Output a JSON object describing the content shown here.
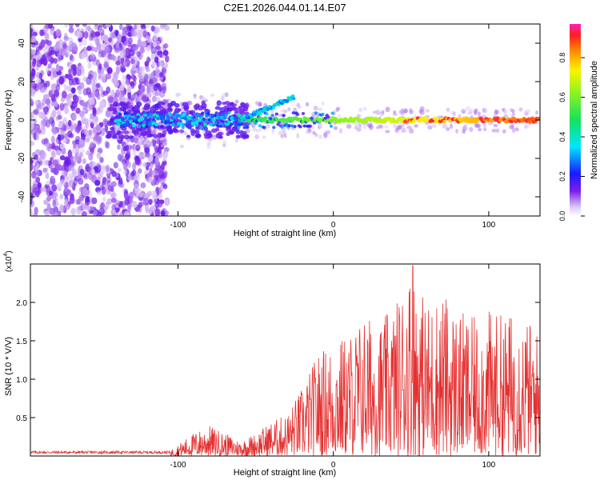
{
  "title": "C2E1.2026.044.01.14.E07",
  "chart_data": [
    {
      "type": "heatmap",
      "name": "spectrogram",
      "xlabel": "Height of straight line (km)",
      "ylabel": "Frequency (Hz)",
      "xlim": [
        -195,
        133
      ],
      "ylim": [
        -50,
        50
      ],
      "xticks": [
        -100,
        0,
        100
      ],
      "xtick_labels": [
        "-100",
        "0",
        "100"
      ],
      "yticks": [
        -40,
        -20,
        0,
        20,
        40
      ],
      "ytick_labels": [
        "-40",
        "-20",
        "0",
        "20",
        "40"
      ],
      "colorbar": {
        "label": "Normalized spectral amplitude",
        "range": [
          0,
          0.97
        ],
        "ticks": [
          0.0,
          0.2,
          0.4,
          0.6,
          0.8
        ],
        "tick_labels": [
          "0.0",
          "0.2",
          "0.4",
          "0.6",
          "0.8"
        ]
      },
      "features": {
        "noise_region_x": [
          -195,
          -107
        ],
        "signal_onset_x": -140,
        "signal_frequency": 0,
        "branch": {
          "x": [
            -60,
            -25
          ],
          "y": [
            0,
            12
          ]
        }
      }
    },
    {
      "type": "line",
      "name": "snr",
      "xlabel": "Height of straight line (km)",
      "ylabel": "SNR (10 * V/V)",
      "scale_label": "(x10",
      "scale_exponent": "4",
      "scale_suffix": ")",
      "xlim": [
        -195,
        133
      ],
      "ylim": [
        0,
        2.5
      ],
      "xticks": [
        -100,
        0,
        100
      ],
      "xtick_labels": [
        "-100",
        "0",
        "100"
      ],
      "yticks": [
        0.5,
        1.0,
        1.5,
        2.0
      ],
      "ytick_labels": [
        "0.5",
        "1.0",
        "1.5",
        "2.0"
      ],
      "series": [
        {
          "name": "SNR",
          "color": "#e53030",
          "x": [
            -195,
            -120,
            -105,
            -100,
            -90,
            -80,
            -70,
            -60,
            -50,
            -40,
            -30,
            -20,
            -10,
            0,
            10,
            20,
            30,
            40,
            50,
            60,
            70,
            80,
            90,
            100,
            110,
            120,
            133
          ],
          "env": [
            0.05,
            0.06,
            0.08,
            0.15,
            0.3,
            0.4,
            0.3,
            0.2,
            0.3,
            0.45,
            0.55,
            0.9,
            1.35,
            1.5,
            1.6,
            1.85,
            1.75,
            2.0,
            2.5,
            2.0,
            2.15,
            1.9,
            1.8,
            1.9,
            1.85,
            1.9,
            1.6
          ]
        }
      ]
    }
  ]
}
